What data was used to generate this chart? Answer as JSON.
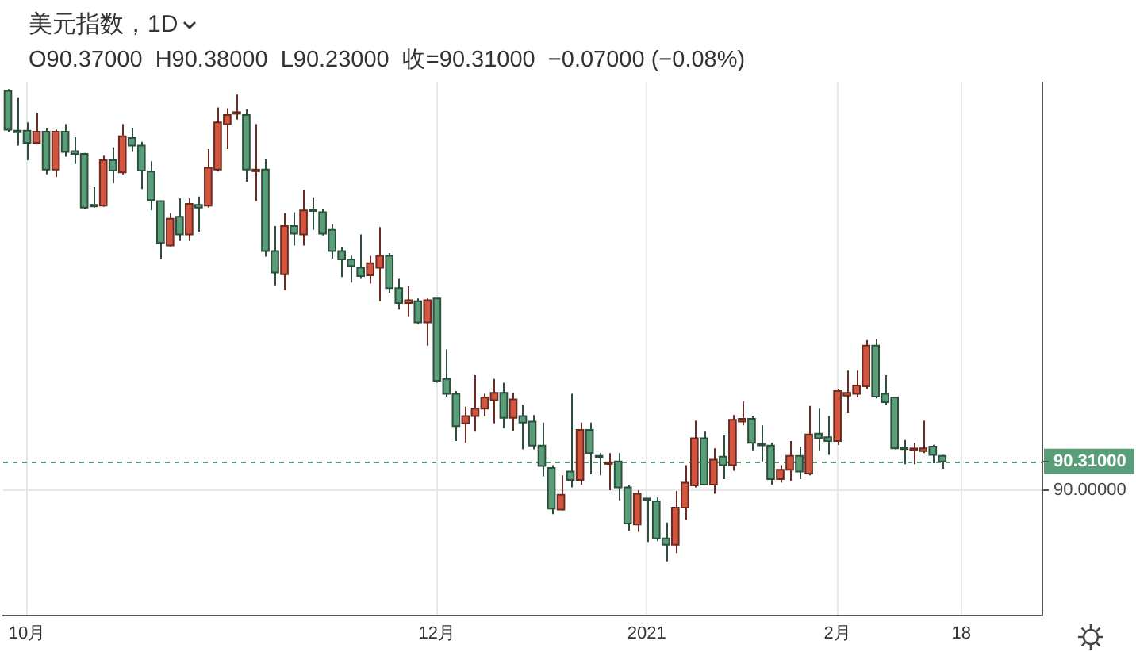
{
  "chart_data": {
    "type": "candlestick",
    "title": "美元指数，1D",
    "subtitle": "O90.37000  H90.38000  L90.23000  收=90.31000  −0.07000 (−0.08%)",
    "categories": [
      null,
      null,
      "10月",
      null,
      null,
      null,
      null,
      null,
      null,
      null,
      null,
      null,
      null,
      null,
      null,
      null,
      null,
      null,
      null,
      null,
      null,
      null,
      null,
      null,
      null,
      null,
      null,
      null,
      null,
      null,
      null,
      null,
      null,
      null,
      null,
      null,
      null,
      null,
      null,
      null,
      null,
      null,
      null,
      null,
      null,
      "12月",
      null,
      null,
      null,
      null,
      null,
      null,
      null,
      null,
      null,
      null,
      null,
      null,
      null,
      null,
      null,
      null,
      null,
      null,
      null,
      null,
      null,
      "2021",
      null,
      null,
      null,
      null,
      null,
      null,
      null,
      null,
      null,
      null,
      null,
      null,
      null,
      null,
      null,
      null,
      null,
      null,
      null,
      "2月",
      null,
      null,
      null,
      null,
      null,
      null,
      null,
      null,
      null,
      null,
      null,
      null,
      "18",
      null,
      null,
      null,
      null,
      null,
      null,
      null,
      null
    ],
    "ohlc": [
      [
        94.31,
        94.33,
        93.87,
        93.89
      ],
      [
        93.88,
        94.24,
        93.72,
        93.87
      ],
      [
        93.88,
        93.97,
        93.56,
        93.75
      ],
      [
        93.75,
        94.07,
        93.73,
        93.87
      ],
      [
        93.87,
        93.91,
        93.41,
        93.46
      ],
      [
        93.46,
        93.89,
        93.38,
        93.87
      ],
      [
        93.87,
        93.95,
        93.6,
        93.65
      ],
      [
        93.66,
        93.81,
        93.52,
        93.63
      ],
      [
        93.63,
        93.64,
        93.03,
        93.05
      ],
      [
        93.08,
        93.27,
        93.05,
        93.07
      ],
      [
        93.07,
        93.61,
        93.06,
        93.56
      ],
      [
        93.56,
        93.7,
        93.31,
        93.45
      ],
      [
        93.43,
        93.95,
        93.41,
        93.82
      ],
      [
        93.8,
        93.91,
        93.65,
        93.72
      ],
      [
        93.72,
        93.76,
        93.25,
        93.45
      ],
      [
        93.44,
        93.55,
        93.02,
        93.13
      ],
      [
        93.12,
        93.12,
        92.49,
        92.67
      ],
      [
        92.64,
        92.99,
        92.63,
        92.93
      ],
      [
        92.95,
        93.15,
        92.69,
        92.76
      ],
      [
        92.76,
        93.15,
        92.69,
        93.09
      ],
      [
        93.08,
        93.17,
        92.79,
        93.05
      ],
      [
        93.07,
        93.68,
        93.05,
        93.48
      ],
      [
        93.46,
        94.13,
        93.44,
        93.97
      ],
      [
        93.95,
        94.12,
        93.68,
        94.05
      ],
      [
        94.07,
        94.27,
        94.0,
        94.08
      ],
      [
        94.05,
        94.11,
        93.33,
        93.46
      ],
      [
        93.45,
        93.95,
        93.12,
        93.46
      ],
      [
        93.46,
        93.57,
        92.52,
        92.58
      ],
      [
        92.58,
        92.85,
        92.21,
        92.35
      ],
      [
        92.33,
        92.99,
        92.16,
        92.85
      ],
      [
        92.85,
        93.0,
        92.64,
        92.77
      ],
      [
        92.76,
        93.24,
        92.64,
        93.02
      ],
      [
        93.03,
        93.16,
        92.81,
        93.02
      ],
      [
        93.0,
        93.03,
        92.75,
        92.77
      ],
      [
        92.81,
        92.87,
        92.5,
        92.58
      ],
      [
        92.58,
        92.62,
        92.3,
        92.49
      ],
      [
        92.49,
        92.53,
        92.24,
        92.42
      ],
      [
        92.4,
        92.76,
        92.28,
        92.31
      ],
      [
        92.32,
        92.53,
        92.23,
        92.45
      ],
      [
        92.4,
        92.84,
        92.04,
        92.53
      ],
      [
        92.53,
        92.56,
        92.13,
        92.18
      ],
      [
        92.18,
        92.28,
        91.95,
        92.02
      ],
      [
        92.02,
        92.2,
        91.87,
        92.05
      ],
      [
        92.04,
        92.07,
        91.79,
        91.81
      ],
      [
        91.81,
        92.07,
        91.56,
        92.05
      ],
      [
        92.07,
        92.07,
        91.16,
        91.18
      ],
      [
        91.2,
        91.52,
        91.01,
        91.04
      ],
      [
        91.04,
        91.07,
        90.53,
        90.69
      ],
      [
        90.72,
        90.9,
        90.51,
        90.8
      ],
      [
        90.8,
        91.24,
        90.63,
        90.88
      ],
      [
        90.88,
        91.04,
        90.8,
        91.0
      ],
      [
        90.97,
        91.2,
        90.72,
        91.05
      ],
      [
        91.05,
        91.16,
        90.67,
        90.78
      ],
      [
        90.78,
        91.05,
        90.64,
        90.98
      ],
      [
        90.8,
        90.92,
        90.44,
        90.73
      ],
      [
        90.74,
        90.81,
        90.44,
        90.48
      ],
      [
        90.48,
        90.73,
        90.15,
        90.26
      ],
      [
        90.24,
        90.27,
        89.74,
        89.8
      ],
      [
        89.79,
        90.16,
        89.78,
        89.95
      ],
      [
        90.2,
        91.04,
        90.03,
        90.11
      ],
      [
        90.11,
        90.73,
        90.06,
        90.65
      ],
      [
        90.65,
        90.73,
        90.17,
        90.4
      ],
      [
        90.37,
        90.4,
        90.16,
        90.36
      ],
      [
        90.29,
        90.4,
        90.0,
        90.3
      ],
      [
        90.31,
        90.4,
        89.89,
        90.03
      ],
      [
        90.03,
        90.05,
        89.56,
        89.64
      ],
      [
        89.63,
        90.0,
        89.55,
        89.96
      ],
      [
        89.91,
        89.91,
        89.44,
        89.9
      ],
      [
        89.88,
        89.92,
        89.45,
        89.48
      ],
      [
        89.48,
        89.65,
        89.23,
        89.41
      ],
      [
        89.41,
        89.99,
        89.32,
        89.81
      ],
      [
        89.81,
        90.27,
        89.68,
        90.08
      ],
      [
        90.05,
        90.75,
        90.03,
        90.56
      ],
      [
        90.56,
        90.63,
        90.05,
        90.06
      ],
      [
        90.06,
        90.45,
        89.96,
        90.33
      ],
      [
        90.36,
        90.59,
        90.12,
        90.27
      ],
      [
        90.27,
        90.81,
        90.21,
        90.76
      ],
      [
        90.74,
        90.96,
        90.7,
        90.77
      ],
      [
        90.77,
        90.8,
        90.43,
        90.51
      ],
      [
        90.5,
        90.7,
        90.31,
        90.49
      ],
      [
        90.48,
        90.51,
        90.06,
        90.12
      ],
      [
        90.12,
        90.27,
        90.08,
        90.22
      ],
      [
        90.22,
        90.53,
        90.1,
        90.37
      ],
      [
        90.37,
        90.47,
        90.12,
        90.2
      ],
      [
        90.18,
        90.91,
        90.16,
        90.6
      ],
      [
        90.61,
        90.88,
        90.43,
        90.56
      ],
      [
        90.57,
        90.8,
        90.38,
        90.53
      ],
      [
        90.53,
        91.09,
        90.49,
        91.07
      ],
      [
        91.02,
        91.29,
        90.83,
        91.05
      ],
      [
        91.04,
        91.29,
        91.0,
        91.13
      ],
      [
        91.12,
        91.62,
        91.09,
        91.56
      ],
      [
        91.56,
        91.63,
        90.99,
        91.01
      ],
      [
        91.04,
        91.24,
        90.92,
        90.95
      ],
      [
        91.0,
        91.0,
        90.44,
        90.45
      ],
      [
        90.46,
        90.54,
        90.28,
        90.45
      ],
      [
        90.44,
        90.51,
        90.28,
        90.45
      ],
      [
        90.42,
        90.75,
        90.4,
        90.45
      ],
      [
        90.47,
        90.49,
        90.29,
        90.38
      ],
      [
        90.37,
        90.38,
        90.23,
        90.31
      ],
      null,
      null,
      null,
      null,
      null,
      null,
      null,
      null,
      null,
      null
    ],
    "colors": [
      "#5a9e79",
      "#5a9e79",
      "#5a9e79",
      "#d4553f",
      "#5a9e79",
      "#d4553f",
      "#5a9e79",
      "#5a9e79",
      "#5a9e79",
      "#5a9e79",
      "#d4553f",
      "#5a9e79",
      "#d4553f",
      "#5a9e79",
      "#5a9e79",
      "#5a9e79",
      "#5a9e79",
      "#d4553f",
      "#5a9e79",
      "#d4553f",
      "#5a9e79",
      "#d4553f",
      "#d4553f",
      "#d4553f",
      "#d4553f",
      "#5a9e79",
      "#d4553f",
      "#5a9e79",
      "#5a9e79",
      "#d4553f",
      "#5a9e79",
      "#d4553f",
      "#5a9e79",
      "#5a9e79",
      "#5a9e79",
      "#5a9e79",
      "#5a9e79",
      "#5a9e79",
      "#d4553f",
      "#d4553f",
      "#5a9e79",
      "#5a9e79",
      "#d4553f",
      "#5a9e79",
      "#d4553f",
      "#5a9e79",
      "#5a9e79",
      "#5a9e79",
      "#d4553f",
      "#d4553f",
      "#d4553f",
      "#d4553f",
      "#5a9e79",
      "#d4553f",
      "#5a9e79",
      "#5a9e79",
      "#5a9e79",
      "#5a9e79",
      "#d4553f",
      "#5a9e79",
      "#d4553f",
      "#5a9e79",
      "#5a9e79",
      "#d4553f",
      "#5a9e79",
      "#5a9e79",
      "#d4553f",
      "#5a9e79",
      "#5a9e79",
      "#5a9e79",
      "#d4553f",
      "#d4553f",
      "#d4553f",
      "#5a9e79",
      "#d4553f",
      "#5a9e79",
      "#d4553f",
      "#d4553f",
      "#5a9e79",
      "#5a9e79",
      "#5a9e79",
      "#d4553f",
      "#d4553f",
      "#5a9e79",
      "#d4553f",
      "#5a9e79",
      "#5a9e79",
      "#d4553f",
      "#d4553f",
      "#d4553f",
      "#d4553f",
      "#5a9e79",
      "#5a9e79",
      "#5a9e79",
      "#5a9e79",
      "#d4553f",
      "#d4553f",
      "#5a9e79",
      "#5a9e79",
      null,
      null,
      null,
      null,
      null,
      null,
      null,
      null,
      null,
      null
    ],
    "ylim": [
      88.65,
      94.4
    ],
    "yticks": [
      {
        "value": 90,
        "label": "90.00000"
      },
      {
        "value": 90.31,
        "label": "90.31000"
      }
    ],
    "ref_lines": [
      {
        "axis": "y",
        "value": 90.31,
        "color": "#5a9e79",
        "line_style": "dashed"
      }
    ],
    "grid": true
  }
}
